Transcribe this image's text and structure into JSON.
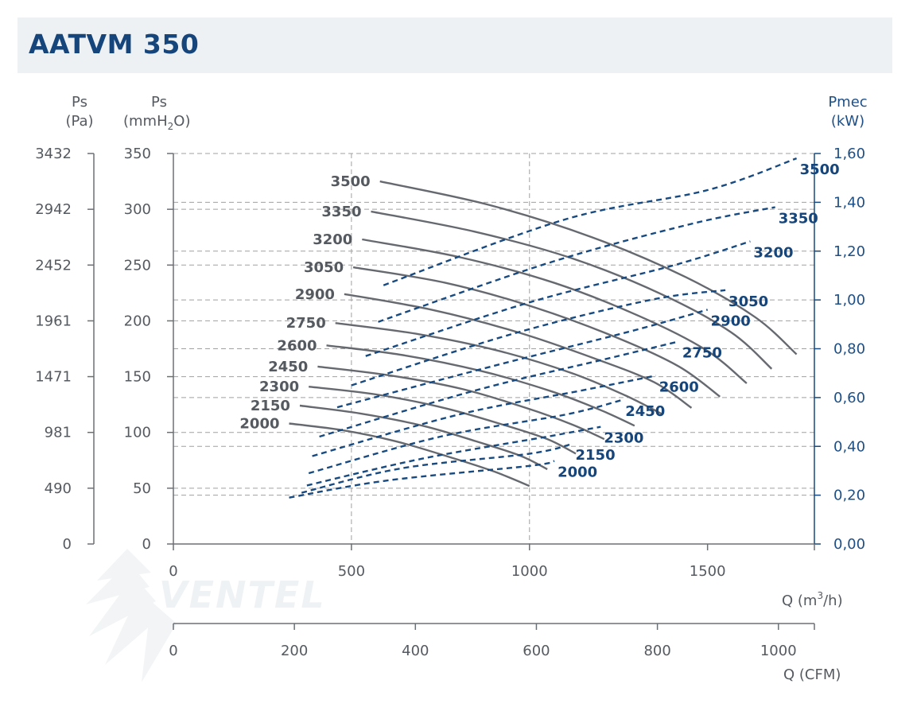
{
  "title": "AATVM 350",
  "axes": {
    "pa_label_1": "Ps",
    "pa_label_2": "(Pa)",
    "mmh2o_label_1": "Ps",
    "mmh2o_label_2a": "(mmH",
    "mmh2o_label_sub": "2",
    "mmh2o_label_2b": "O)",
    "pmec_label_1": "Pmec",
    "pmec_label_2": "(kW)",
    "q_m3h_label_a": "Q (m",
    "q_m3h_label_sup": "3",
    "q_m3h_label_b": "/h)",
    "q_cfm_label": "Q (CFM)",
    "watermark_text": "VENTEL"
  },
  "colors": {
    "pressure_curve": "#666a70",
    "power_curve": "#174a80",
    "accent": "#15457a",
    "grid": "#a0a0a0"
  },
  "chart_data": {
    "type": "line",
    "title": "AATVM 350",
    "xlabel": "Q (m3/h)",
    "ylabel": "Ps (mmH2O)",
    "y2label": "Pmec (kW)",
    "xlim": [
      0,
      1800
    ],
    "ylim": [
      0,
      350
    ],
    "y2lim": [
      0,
      1.6
    ],
    "x_ticks": [
      "0",
      "500",
      "1000",
      "1500"
    ],
    "x_tick_values": [
      0,
      500,
      1000,
      1500
    ],
    "y_ticks": [
      "0",
      "50",
      "100",
      "150",
      "200",
      "250",
      "300",
      "350"
    ],
    "y_tick_values": [
      0,
      50,
      100,
      150,
      200,
      250,
      300,
      350
    ],
    "pa_ticks": [
      "0",
      "490",
      "981",
      "1471",
      "1961",
      "2452",
      "2942",
      "3432"
    ],
    "y2_ticks": [
      "0,00",
      "0,20",
      "0,40",
      "0,60",
      "0,80",
      "1,00",
      "1,20",
      "1,40",
      "1,60"
    ],
    "y2_tick_values": [
      0,
      0.2,
      0.4,
      0.6,
      0.8,
      1.0,
      1.2,
      1.4,
      1.6
    ],
    "cfm_ticks": [
      "0",
      "200",
      "400",
      "600",
      "800",
      "1000"
    ],
    "cfm_tick_values": [
      0,
      200,
      400,
      600,
      800,
      1000
    ],
    "grid_dashed": true,
    "pressure_series": [
      {
        "name": "2000",
        "points": [
          [
            325,
            108
          ],
          [
            475,
            102
          ],
          [
            625,
            92
          ],
          [
            775,
            78
          ],
          [
            900,
            65
          ],
          [
            1000,
            52
          ]
        ]
      },
      {
        "name": "2150",
        "points": [
          [
            355,
            124
          ],
          [
            525,
            117
          ],
          [
            700,
            106
          ],
          [
            850,
            92
          ],
          [
            975,
            79
          ],
          [
            1050,
            67
          ]
        ]
      },
      {
        "name": "2300",
        "points": [
          [
            380,
            141
          ],
          [
            570,
            134
          ],
          [
            760,
            122
          ],
          [
            925,
            107
          ],
          [
            1050,
            94
          ],
          [
            1130,
            81
          ]
        ]
      },
      {
        "name": "2450",
        "points": [
          [
            405,
            159
          ],
          [
            610,
            151
          ],
          [
            810,
            139
          ],
          [
            990,
            122
          ],
          [
            1120,
            107
          ],
          [
            1210,
            94
          ]
        ]
      },
      {
        "name": "2600",
        "points": [
          [
            430,
            178
          ],
          [
            650,
            169
          ],
          [
            865,
            155
          ],
          [
            1060,
            137
          ],
          [
            1200,
            120
          ],
          [
            1295,
            106
          ]
        ]
      },
      {
        "name": "2750",
        "points": [
          [
            455,
            198
          ],
          [
            690,
            188
          ],
          [
            915,
            173
          ],
          [
            1120,
            153
          ],
          [
            1270,
            133
          ],
          [
            1375,
            116
          ]
        ]
      },
      {
        "name": "2900",
        "points": [
          [
            480,
            224
          ],
          [
            725,
            210
          ],
          [
            965,
            190
          ],
          [
            1185,
            166
          ],
          [
            1350,
            145
          ],
          [
            1455,
            122
          ]
        ]
      },
      {
        "name": "3050",
        "points": [
          [
            505,
            248
          ],
          [
            765,
            234
          ],
          [
            1015,
            212
          ],
          [
            1245,
            185
          ],
          [
            1420,
            159
          ],
          [
            1535,
            132
          ]
        ]
      },
      {
        "name": "3200",
        "points": [
          [
            530,
            273
          ],
          [
            805,
            257
          ],
          [
            1070,
            234
          ],
          [
            1310,
            204
          ],
          [
            1495,
            174
          ],
          [
            1610,
            144
          ]
        ]
      },
      {
        "name": "3350",
        "points": [
          [
            555,
            298
          ],
          [
            845,
            280
          ],
          [
            1120,
            256
          ],
          [
            1370,
            224
          ],
          [
            1565,
            190
          ],
          [
            1680,
            157
          ]
        ]
      },
      {
        "name": "3500",
        "points": [
          [
            580,
            325
          ],
          [
            885,
            304
          ],
          [
            1175,
            275
          ],
          [
            1440,
            239
          ],
          [
            1635,
            203
          ],
          [
            1750,
            170
          ]
        ]
      }
    ],
    "power_series": [
      {
        "name": "2000",
        "points": [
          [
            325,
            0.19
          ],
          [
            600,
            0.26
          ],
          [
            1000,
            0.32
          ],
          [
            1070,
            0.34
          ]
        ]
      },
      {
        "name": "2150",
        "points": [
          [
            360,
            0.21
          ],
          [
            640,
            0.31
          ],
          [
            1000,
            0.37
          ],
          [
            1120,
            0.41
          ]
        ]
      },
      {
        "name": "2300",
        "points": [
          [
            375,
            0.24
          ],
          [
            700,
            0.35
          ],
          [
            1050,
            0.44
          ],
          [
            1200,
            0.48
          ]
        ]
      },
      {
        "name": "2450",
        "points": [
          [
            380,
            0.29
          ],
          [
            750,
            0.44
          ],
          [
            1100,
            0.53
          ],
          [
            1260,
            0.59
          ]
        ]
      },
      {
        "name": "2600",
        "points": [
          [
            390,
            0.36
          ],
          [
            800,
            0.53
          ],
          [
            1150,
            0.63
          ],
          [
            1355,
            0.69
          ]
        ]
      },
      {
        "name": "2750",
        "points": [
          [
            410,
            0.44
          ],
          [
            850,
            0.63
          ],
          [
            1220,
            0.76
          ],
          [
            1420,
            0.83
          ]
        ]
      },
      {
        "name": "2900",
        "points": [
          [
            460,
            0.56
          ],
          [
            900,
            0.73
          ],
          [
            1280,
            0.87
          ],
          [
            1500,
            0.96
          ]
        ]
      },
      {
        "name": "3050",
        "points": [
          [
            500,
            0.65
          ],
          [
            950,
            0.86
          ],
          [
            1340,
            1.0
          ],
          [
            1550,
            1.04
          ]
        ]
      },
      {
        "name": "3200",
        "points": [
          [
            540,
            0.77
          ],
          [
            1000,
            0.99
          ],
          [
            1400,
            1.14
          ],
          [
            1620,
            1.24
          ]
        ]
      },
      {
        "name": "3350",
        "points": [
          [
            575,
            0.91
          ],
          [
            1050,
            1.15
          ],
          [
            1450,
            1.31
          ],
          [
            1690,
            1.38
          ]
        ]
      },
      {
        "name": "3500",
        "points": [
          [
            590,
            1.06
          ],
          [
            1100,
            1.33
          ],
          [
            1500,
            1.45
          ],
          [
            1750,
            1.58
          ]
        ]
      }
    ]
  }
}
